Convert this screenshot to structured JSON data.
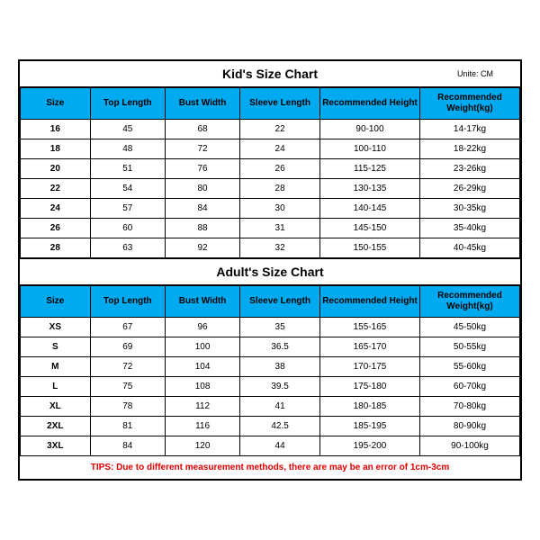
{
  "kids": {
    "title": "Kid's Size Chart",
    "unite": "Unite: CM",
    "columns": [
      "Size",
      "Top Length",
      "Bust Width",
      "Sleeve Length",
      "Recommended Height",
      "Recommended Weight(kg)"
    ],
    "rows": [
      [
        "16",
        "45",
        "68",
        "22",
        "90-100",
        "14-17kg"
      ],
      [
        "18",
        "48",
        "72",
        "24",
        "100-110",
        "18-22kg"
      ],
      [
        "20",
        "51",
        "76",
        "26",
        "115-125",
        "23-26kg"
      ],
      [
        "22",
        "54",
        "80",
        "28",
        "130-135",
        "26-29kg"
      ],
      [
        "24",
        "57",
        "84",
        "30",
        "140-145",
        "30-35kg"
      ],
      [
        "26",
        "60",
        "88",
        "31",
        "145-150",
        "35-40kg"
      ],
      [
        "28",
        "63",
        "92",
        "32",
        "150-155",
        "40-45kg"
      ]
    ]
  },
  "adults": {
    "title": "Adult's Size Chart",
    "columns": [
      "Size",
      "Top Length",
      "Bust Width",
      "Sleeve Length",
      "Recommended Height",
      "Recommended Weight(kg)"
    ],
    "rows": [
      [
        "XS",
        "67",
        "96",
        "35",
        "155-165",
        "45-50kg"
      ],
      [
        "S",
        "69",
        "100",
        "36.5",
        "165-170",
        "50-55kg"
      ],
      [
        "M",
        "72",
        "104",
        "38",
        "170-175",
        "55-60kg"
      ],
      [
        "L",
        "75",
        "108",
        "39.5",
        "175-180",
        "60-70kg"
      ],
      [
        "XL",
        "78",
        "112",
        "41",
        "180-185",
        "70-80kg"
      ],
      [
        "2XL",
        "81",
        "116",
        "42.5",
        "185-195",
        "80-90kg"
      ],
      [
        "3XL",
        "84",
        "120",
        "44",
        "195-200",
        "90-100kg"
      ]
    ]
  },
  "tips": "TIPS: Due to different measurement methods, there are may be an error of 1cm-3cm"
}
